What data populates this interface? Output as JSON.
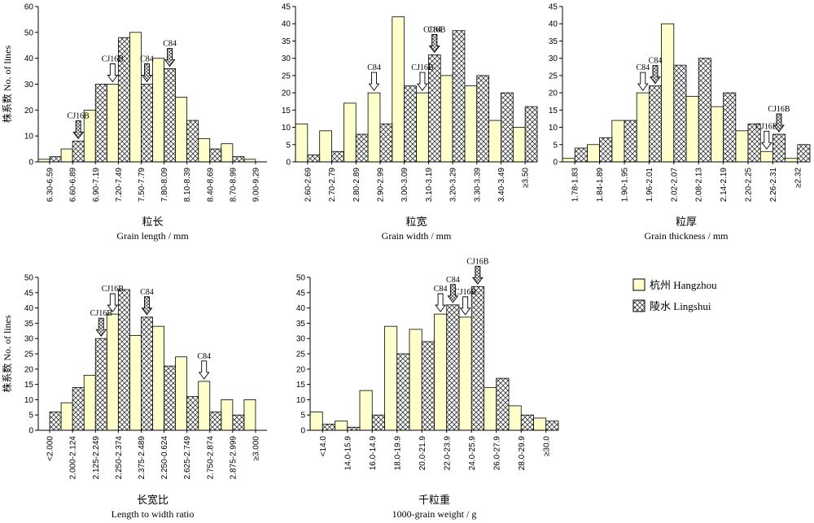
{
  "colors": {
    "hangzhou": "#ffffcc",
    "lingshui_hatch": "#333333",
    "axis": "#000000"
  },
  "legend": {
    "items": [
      {
        "label": "杭州 Hangzhou",
        "style": "plain"
      },
      {
        "label": "陵水 Lingshui",
        "style": "hatched"
      }
    ]
  },
  "chart_data": [
    {
      "type": "bar",
      "cn_label": "粒长",
      "xlabel": "Grain length / mm",
      "ylabel": "株系数 No. of lines",
      "ylim": [
        0,
        60
      ],
      "yticks": [
        0,
        10,
        20,
        30,
        40,
        50,
        60
      ],
      "categories": [
        "6.30-6.59",
        "6.60-6.89",
        "6.90-7.19",
        "7.20-7.49",
        "7.50-7.79",
        "7.80-8.09",
        "8.10-8.39",
        "8.40-8.69",
        "8.70-8.99",
        "9.00-9.29"
      ],
      "series": [
        {
          "name": "杭州 Hangzhou",
          "values": [
            1,
            5,
            20,
            30,
            50,
            40,
            25,
            9,
            7,
            1
          ]
        },
        {
          "name": "陵水 Lingshui",
          "values": [
            2,
            8,
            30,
            48,
            30,
            36,
            16,
            5,
            2,
            0
          ]
        }
      ],
      "annotations": [
        {
          "text": "CJ16B",
          "index": 1,
          "series": 1
        },
        {
          "text": "CJ16B",
          "index": 3,
          "series": 0
        },
        {
          "text": "C84",
          "index": 4,
          "series": 1
        },
        {
          "text": "C84",
          "index": 5,
          "series": 1
        }
      ]
    },
    {
      "type": "bar",
      "cn_label": "粒宽",
      "xlabel": "Grain width / mm",
      "ylabel": "",
      "ylim": [
        0,
        45
      ],
      "yticks": [
        0,
        5,
        10,
        15,
        20,
        25,
        30,
        35,
        40,
        45
      ],
      "categories": [
        "2.60-2.69",
        "2.70-2.79",
        "2.80-2.89",
        "2.90-2.99",
        "3.00-3.09",
        "3.10-3.19",
        "3.20-3.29",
        "3.30-3.39",
        "3.40-3.49",
        "≥3.50"
      ],
      "series": [
        {
          "name": "杭州 Hangzhou",
          "values": [
            11,
            9,
            17,
            20,
            42,
            20,
            25,
            22,
            12,
            10
          ]
        },
        {
          "name": "陵水 Lingshui",
          "values": [
            2,
            3,
            8,
            11,
            22,
            31,
            38,
            25,
            20,
            16
          ]
        }
      ],
      "annotations": [
        {
          "text": "C84",
          "index": 3,
          "series": 0
        },
        {
          "text": "CJ16B",
          "index": 5,
          "series": 0
        },
        {
          "text": "C84",
          "index": 5,
          "series": 1
        },
        {
          "text": "CJ16B",
          "index": 5,
          "series": 1
        }
      ]
    },
    {
      "type": "bar",
      "cn_label": "粒厚",
      "xlabel": "Grain thickness / mm",
      "ylabel": "",
      "ylim": [
        0,
        45
      ],
      "yticks": [
        0,
        5,
        10,
        15,
        20,
        25,
        30,
        35,
        40,
        45
      ],
      "categories": [
        "1.78-1.83",
        "1.84-1.89",
        "1.90-1.95",
        "1.96-2.01",
        "2.02-2.07",
        "2.08-2.13",
        "2.14-2.19",
        "2.20-2.25",
        "2.26-2.31",
        "≥2.32"
      ],
      "series": [
        {
          "name": "杭州 Hangzhou",
          "values": [
            1,
            5,
            12,
            20,
            40,
            19,
            16,
            9,
            3,
            1
          ]
        },
        {
          "name": "陵水 Lingshui",
          "values": [
            4,
            7,
            12,
            22,
            28,
            30,
            20,
            11,
            8,
            5
          ]
        }
      ],
      "annotations": [
        {
          "text": "C84",
          "index": 3,
          "series": 0
        },
        {
          "text": "C84",
          "index": 3,
          "series": 1
        },
        {
          "text": "CJ16B",
          "index": 8,
          "series": 0
        },
        {
          "text": "CJ16B",
          "index": 8,
          "series": 1
        }
      ]
    },
    {
      "type": "bar",
      "cn_label": "长宽比",
      "xlabel": "Length to width ratio",
      "ylabel": "株系数 No. of lines",
      "ylim": [
        0,
        50
      ],
      "yticks": [
        0,
        5,
        10,
        15,
        20,
        25,
        30,
        35,
        40,
        45,
        50
      ],
      "categories": [
        "<2.000",
        "2.000-2.124",
        "2.125-2.249",
        "2.250-2.374",
        "2.375-2.489",
        "2.250-0.624",
        "2.625-2.749",
        "2.750-2.874",
        "2.875-2.999",
        "≥3.000"
      ],
      "series": [
        {
          "name": "杭州 Hangzhou",
          "values": [
            0,
            9,
            18,
            38,
            31,
            34,
            24,
            16,
            10,
            10
          ]
        },
        {
          "name": "陵水 Lingshui",
          "values": [
            6,
            14,
            30,
            46,
            37,
            21,
            11,
            6,
            5,
            0
          ]
        }
      ],
      "annotations": [
        {
          "text": "CJ16B",
          "index": 2,
          "series": 1
        },
        {
          "text": "CJ16B",
          "index": 3,
          "series": 0
        },
        {
          "text": "C84",
          "index": 4,
          "series": 1
        },
        {
          "text": "C84",
          "index": 7,
          "series": 0
        }
      ]
    },
    {
      "type": "bar",
      "cn_label": "千粒重",
      "xlabel": "1000-grain weight / g",
      "ylabel": "",
      "ylim": [
        0,
        50
      ],
      "yticks": [
        0,
        5,
        10,
        15,
        20,
        25,
        30,
        35,
        40,
        45,
        50
      ],
      "categories": [
        "<14.0",
        "14.0-15.9",
        "16.0-14.9",
        "18.0-19.9",
        "20.0-21.9",
        "22.0-23.9",
        "24.0-25.9",
        "26.0-27.9",
        "28.0-29.9",
        "≥30.0"
      ],
      "series": [
        {
          "name": "杭州 Hangzhou",
          "values": [
            6,
            3,
            13,
            34,
            33,
            38,
            37,
            14,
            8,
            4
          ]
        },
        {
          "name": "陵水 Lingshui",
          "values": [
            2,
            1,
            5,
            25,
            29,
            41,
            47,
            17,
            5,
            3
          ]
        }
      ],
      "annotations": [
        {
          "text": "C84",
          "index": 5,
          "series": 0
        },
        {
          "text": "C84",
          "index": 5,
          "series": 1
        },
        {
          "text": "CJ16B",
          "index": 6,
          "series": 0
        },
        {
          "text": "CJ16B",
          "index": 6,
          "series": 1
        }
      ]
    }
  ]
}
